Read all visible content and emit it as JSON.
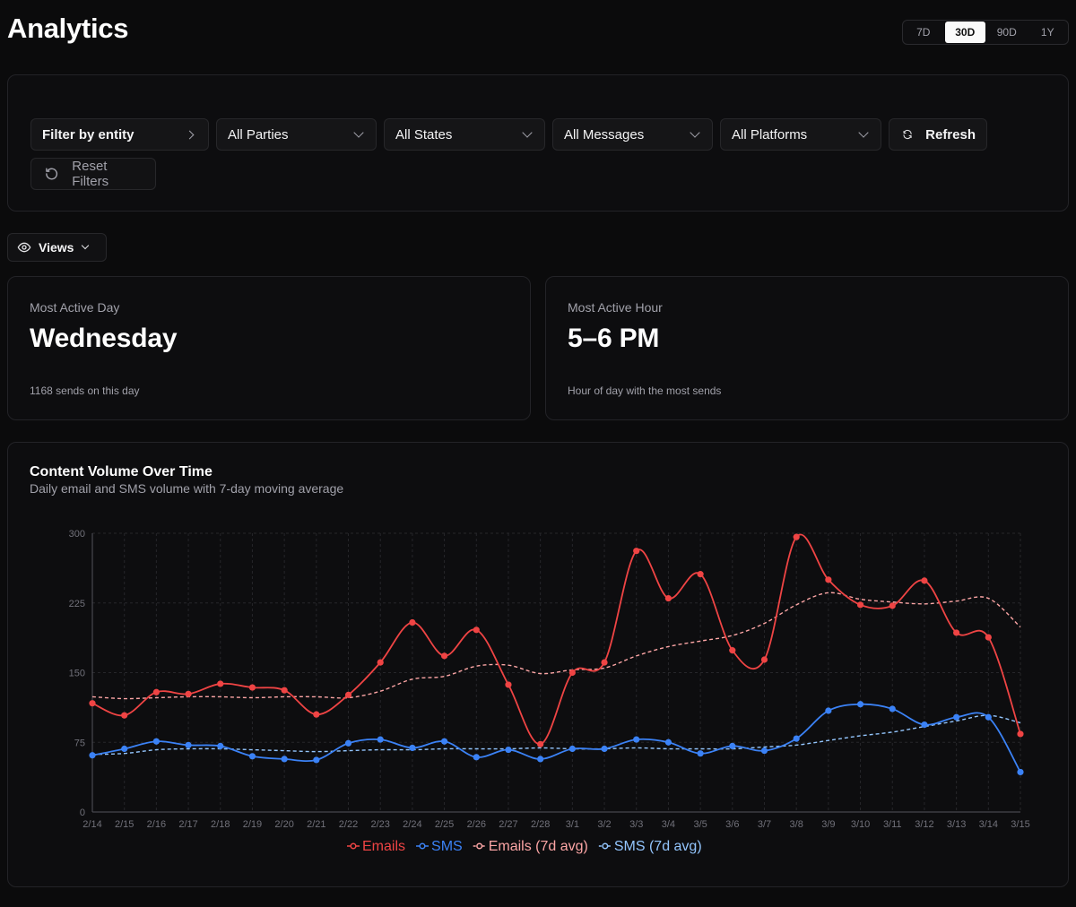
{
  "header": {
    "title": "Analytics"
  },
  "time_range": {
    "options": [
      "7D",
      "30D",
      "90D",
      "1Y"
    ],
    "selected": "30D"
  },
  "filters": {
    "entity": "Filter by entity",
    "parties": "All Parties",
    "states": "All States",
    "messages": "All Messages",
    "platforms": "All Platforms",
    "refresh": "Refresh",
    "reset": "Reset Filters"
  },
  "views": {
    "label": "Views"
  },
  "stats": {
    "day": {
      "label": "Most Active Day",
      "value": "Wednesday",
      "sub": "1168 sends on this day"
    },
    "hour": {
      "label": "Most Active Hour",
      "value": "5–6 PM",
      "sub": "Hour of day with the most sends"
    }
  },
  "colors": {
    "emails": "#ef4444",
    "sms": "#3b82f6",
    "emails_avg": "#fca5a5",
    "sms_avg": "#93c5fd"
  },
  "chart": {
    "title": "Content Volume Over Time",
    "subtitle": "Daily email and SMS volume with 7-day moving average"
  },
  "chart_data": {
    "type": "line",
    "title": "Content Volume Over Time",
    "ylim": [
      0,
      300
    ],
    "yticks": [
      0,
      75,
      150,
      225,
      300
    ],
    "categories": [
      "2/14",
      "2/15",
      "2/16",
      "2/17",
      "2/18",
      "2/19",
      "2/20",
      "2/21",
      "2/22",
      "2/23",
      "2/24",
      "2/25",
      "2/26",
      "2/27",
      "2/28",
      "3/1",
      "3/2",
      "3/3",
      "3/4",
      "3/5",
      "3/6",
      "3/7",
      "3/8",
      "3/9",
      "3/10",
      "3/11",
      "3/12",
      "3/13",
      "3/14",
      "3/15"
    ],
    "series": [
      {
        "name": "Emails",
        "key": "emails",
        "style": "solid-markers",
        "values": [
          117,
          104,
          129,
          127,
          138,
          134,
          131,
          105,
          126,
          161,
          204,
          168,
          196,
          137,
          73,
          150,
          161,
          281,
          230,
          256,
          174,
          164,
          296,
          250,
          223,
          222,
          249,
          193,
          188,
          84
        ]
      },
      {
        "name": "SMS",
        "key": "sms",
        "style": "solid-markers",
        "values": [
          61,
          68,
          76,
          72,
          71,
          60,
          57,
          56,
          74,
          78,
          69,
          76,
          59,
          67,
          57,
          68,
          68,
          78,
          75,
          63,
          71,
          66,
          79,
          109,
          116,
          111,
          94,
          102,
          102,
          43
        ]
      },
      {
        "name": "Emails (7d avg)",
        "key": "emails_avg",
        "style": "dashed",
        "values": [
          124,
          122,
          123,
          124,
          124,
          123,
          124,
          124,
          123,
          130,
          143,
          146,
          157,
          158,
          149,
          153,
          155,
          168,
          178,
          184,
          190,
          203,
          223,
          236,
          229,
          226,
          224,
          227,
          230,
          199
        ]
      },
      {
        "name": "SMS (7d avg)",
        "key": "sms_avg",
        "style": "dashed",
        "values": [
          62,
          63,
          67,
          68,
          68,
          67,
          66,
          65,
          66,
          67,
          67,
          68,
          68,
          68,
          69,
          68,
          68,
          69,
          68,
          68,
          68,
          70,
          72,
          77,
          82,
          86,
          92,
          98,
          104,
          96
        ]
      }
    ]
  }
}
